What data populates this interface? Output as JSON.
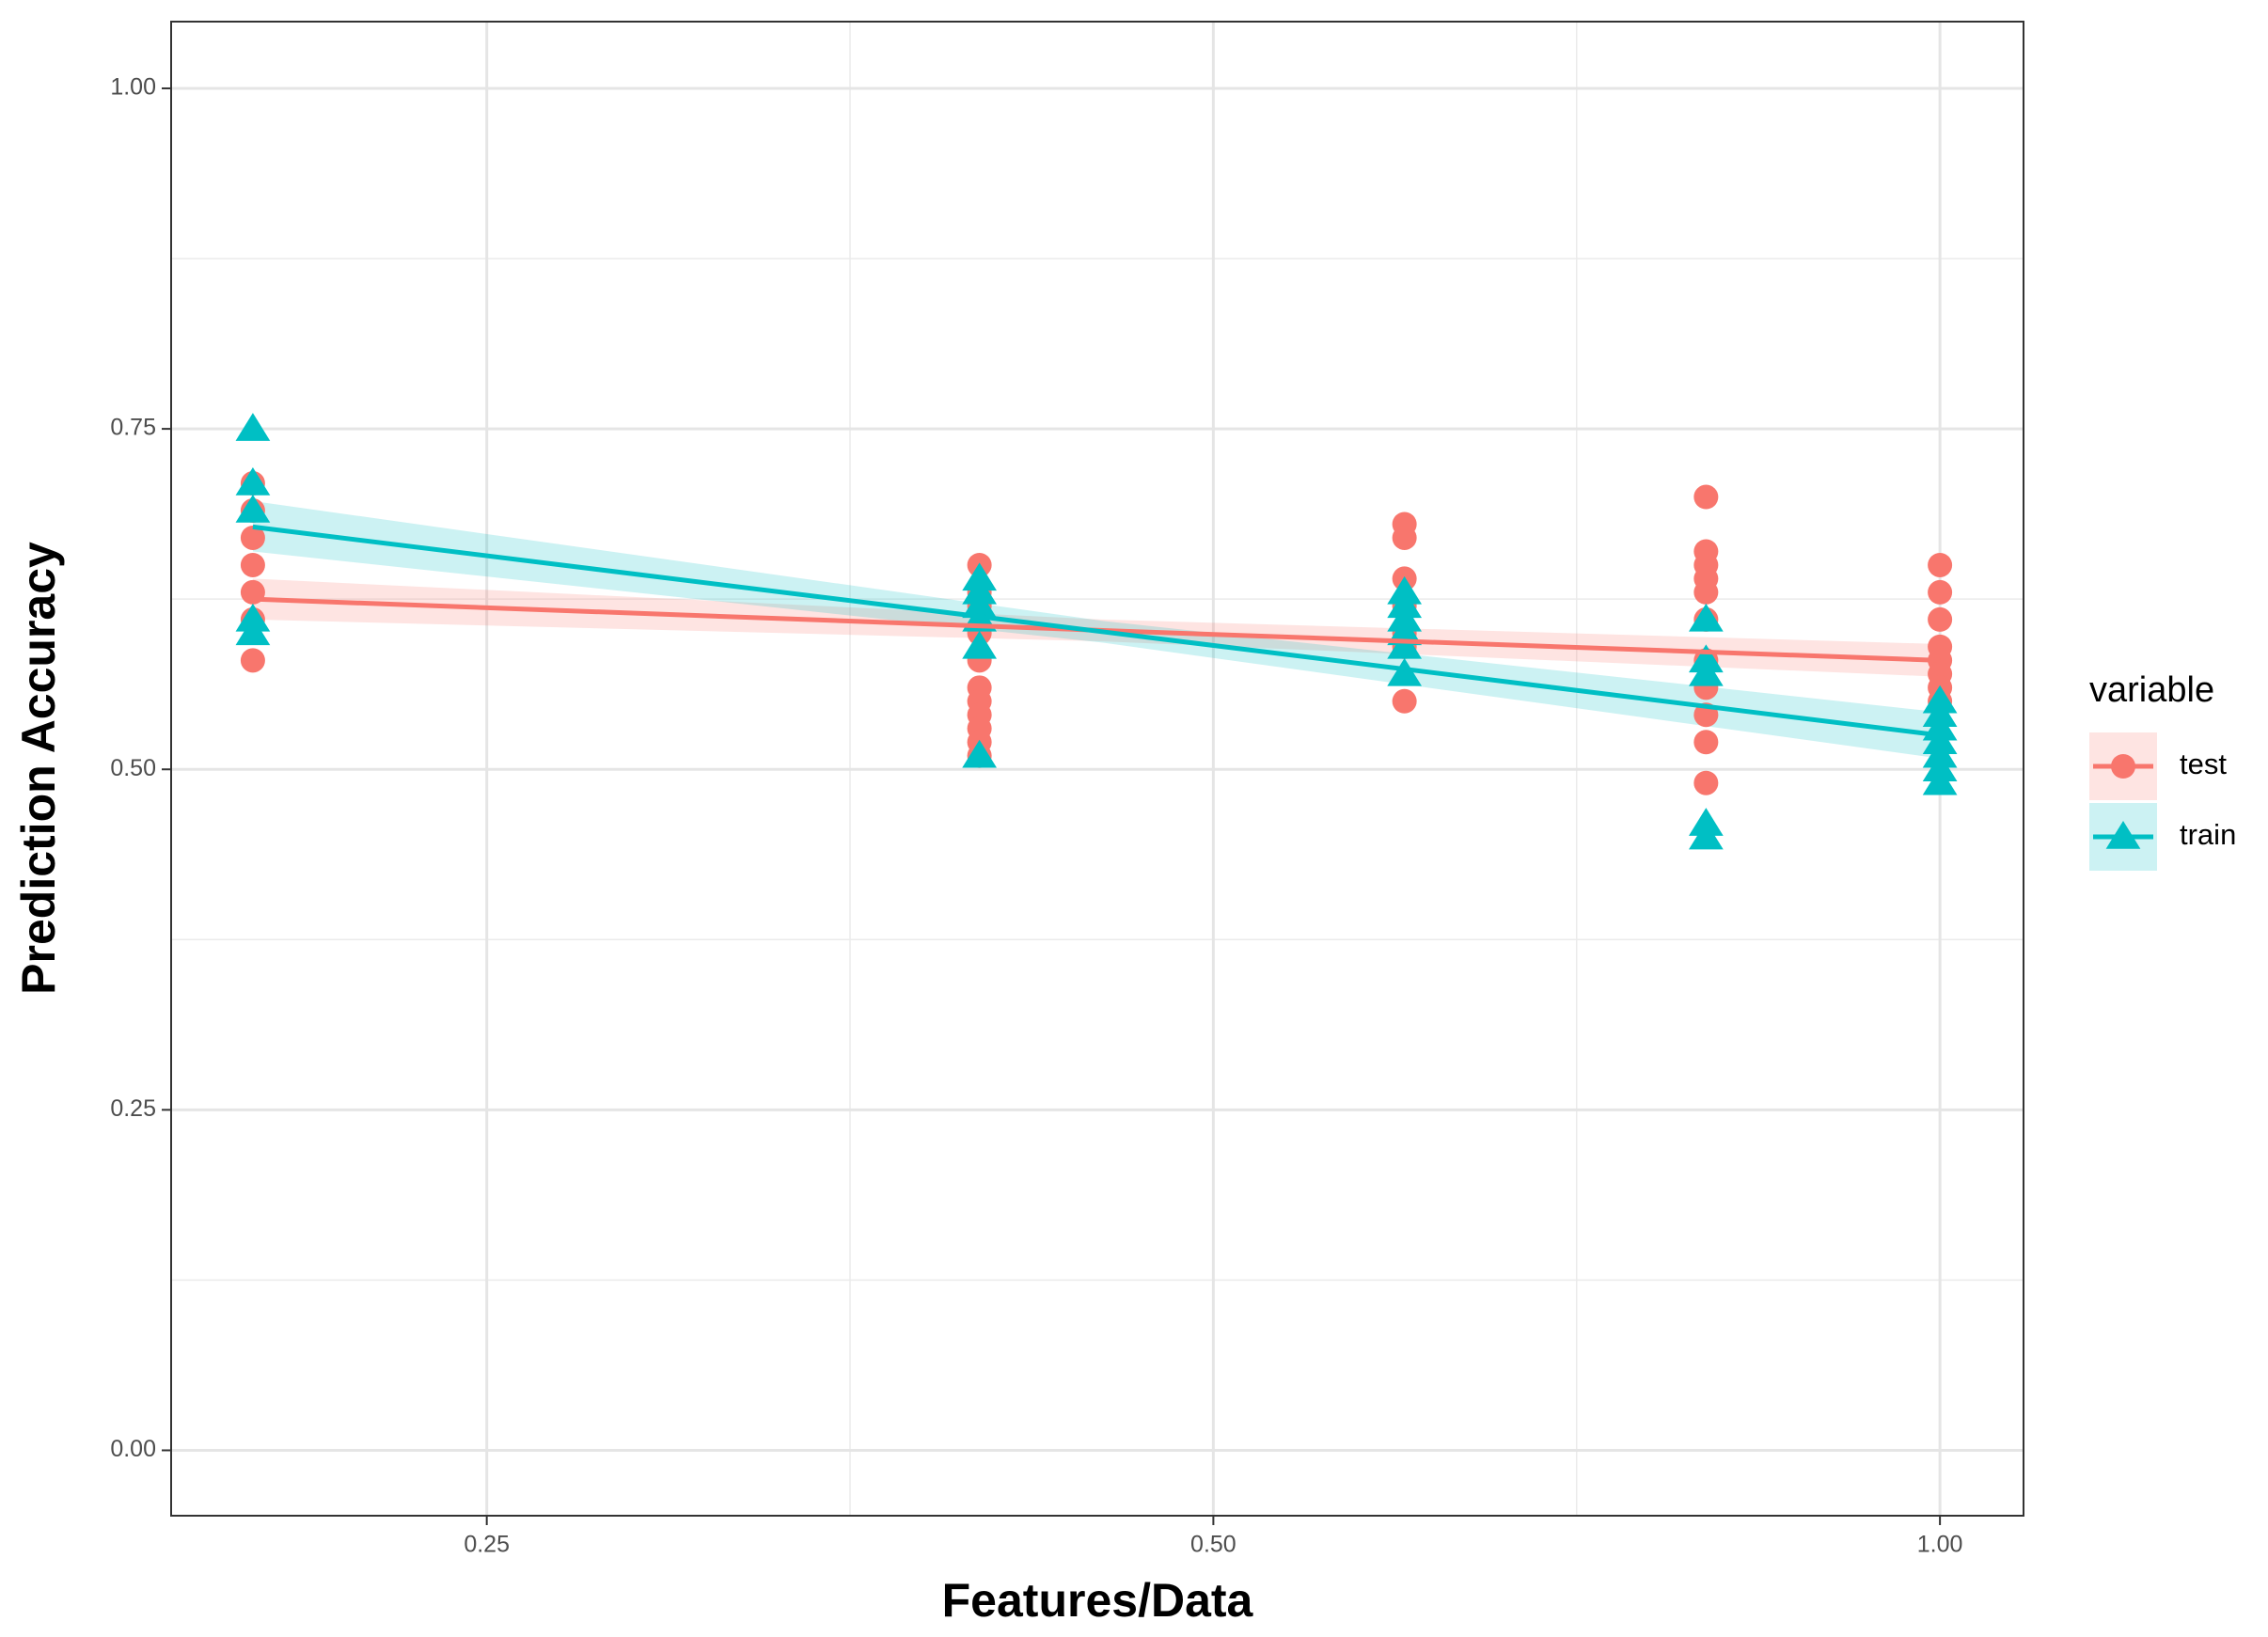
{
  "chart_data": {
    "type": "scatter",
    "x_label": "Features/Data",
    "y_label": "Prediction Accuracy",
    "xscale": "log",
    "xlim": [
      0.185,
      1.083
    ],
    "ylim": [
      -0.048,
      1.049
    ],
    "xticks": [
      {
        "value": 0.25,
        "label": "0.25"
      },
      {
        "value": 0.5,
        "label": "0.50"
      },
      {
        "value": 1,
        "label": "1.00"
      }
    ],
    "yticks": [
      {
        "value": 0,
        "label": "0.00"
      },
      {
        "value": 0.25,
        "label": "0.25"
      },
      {
        "value": 0.5,
        "label": "0.50"
      },
      {
        "value": 0.75,
        "label": "0.75"
      },
      {
        "value": 1,
        "label": "1.00"
      }
    ],
    "grid": true,
    "legend_title": "variable",
    "legend_position": "right",
    "series": [
      {
        "name": "test",
        "color": "#F8766D",
        "marker": "circle",
        "x": [
          0.2,
          0.2,
          0.2,
          0.2,
          0.2,
          0.2,
          0.2,
          0.4,
          0.4,
          0.4,
          0.4,
          0.4,
          0.4,
          0.4,
          0.4,
          0.4,
          0.4,
          0.4,
          0.6,
          0.6,
          0.6,
          0.6,
          0.6,
          0.6,
          0.6,
          0.8,
          0.8,
          0.8,
          0.8,
          0.8,
          0.8,
          0.8,
          0.8,
          0.8,
          0.8,
          0.8,
          1,
          1,
          1,
          1,
          1,
          1,
          1,
          1
        ],
        "values": [
          0.71,
          0.69,
          0.67,
          0.65,
          0.63,
          0.61,
          0.58,
          0.65,
          0.63,
          0.62,
          0.6,
          0.58,
          0.56,
          0.55,
          0.54,
          0.53,
          0.52,
          0.51,
          0.68,
          0.67,
          0.64,
          0.62,
          0.6,
          0.59,
          0.55,
          0.7,
          0.66,
          0.65,
          0.64,
          0.63,
          0.61,
          0.58,
          0.56,
          0.54,
          0.52,
          0.49,
          0.65,
          0.63,
          0.61,
          0.59,
          0.58,
          0.57,
          0.56,
          0.55
        ],
        "fit": {
          "x": [
            0.2,
            0.45,
            1
          ],
          "values": [
            0.625,
            0.602,
            0.58
          ],
          "lower": [
            0.61,
            0.594,
            0.568
          ],
          "upper": [
            0.64,
            0.61,
            0.592
          ]
        }
      },
      {
        "name": "train",
        "color": "#00BFC4",
        "marker": "triangle",
        "x": [
          0.2,
          0.2,
          0.2,
          0.2,
          0.2,
          0.4,
          0.4,
          0.4,
          0.4,
          0.4,
          0.4,
          0.6,
          0.6,
          0.6,
          0.6,
          0.6,
          0.6,
          0.8,
          0.8,
          0.8,
          0.8,
          0.8,
          1,
          1,
          1,
          1,
          1,
          1,
          1
        ],
        "values": [
          0.75,
          0.71,
          0.69,
          0.61,
          0.6,
          0.64,
          0.63,
          0.62,
          0.61,
          0.59,
          0.51,
          0.63,
          0.62,
          0.61,
          0.6,
          0.59,
          0.57,
          0.61,
          0.58,
          0.57,
          0.46,
          0.45,
          0.55,
          0.54,
          0.53,
          0.52,
          0.51,
          0.5,
          0.49
        ],
        "fit": {
          "x": [
            0.2,
            0.45,
            1
          ],
          "values": [
            0.678,
            0.601,
            0.525
          ],
          "lower": [
            0.66,
            0.593,
            0.508
          ],
          "upper": [
            0.697,
            0.609,
            0.542
          ]
        }
      }
    ]
  }
}
